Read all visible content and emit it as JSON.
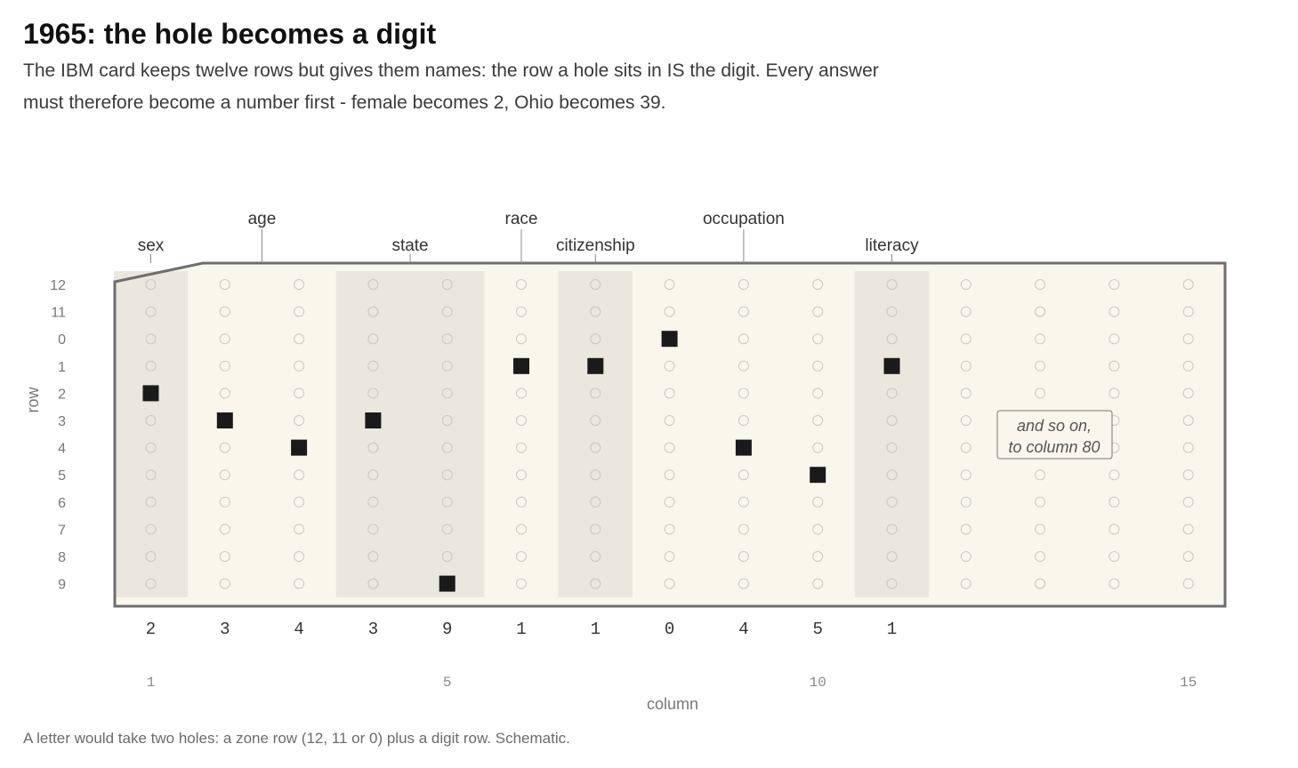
{
  "title": "1965: the hole becomes a digit",
  "subtitle": "The IBM card keeps twelve rows but gives them names: the row a hole sits in IS the digit. Every answer must therefore become a number first - female becomes 2, Ohio becomes 39.",
  "footnote": "A letter would take two holes: a zone row (12, 11 or 0) plus a digit row. Schematic.",
  "axes": {
    "ylabel": "row",
    "xlabel": "column",
    "row_labels": [
      "12",
      "11",
      "0",
      "1",
      "2",
      "3",
      "4",
      "5",
      "6",
      "7",
      "8",
      "9"
    ],
    "column_ticks": [
      "1",
      "5",
      "10",
      "15"
    ]
  },
  "fields": [
    {
      "name": "sex",
      "start": 1,
      "end": 1
    },
    {
      "name": "age",
      "start": 2,
      "end": 3
    },
    {
      "name": "state",
      "start": 4,
      "end": 5
    },
    {
      "name": "race",
      "start": 6,
      "end": 6
    },
    {
      "name": "citizenship",
      "start": 7,
      "end": 7
    },
    {
      "name": "occupation",
      "start": 8,
      "end": 10
    },
    {
      "name": "literacy",
      "start": 11,
      "end": 11
    }
  ],
  "note": {
    "line1": "and so on,",
    "line2": "to column 80"
  },
  "colors": {
    "card_fill": "#faf6ec",
    "shaded_field": "#ebe6de",
    "card_border": "#6e6e6e",
    "punch": "#1a1a1a",
    "empty_hole": "#c8c8c8"
  },
  "chart_data": {
    "type": "punch-card",
    "columns": 15,
    "rows": [
      "12",
      "11",
      "0",
      "1",
      "2",
      "3",
      "4",
      "5",
      "6",
      "7",
      "8",
      "9"
    ],
    "punches": [
      {
        "column": 1,
        "row": "2"
      },
      {
        "column": 2,
        "row": "3"
      },
      {
        "column": 3,
        "row": "4"
      },
      {
        "column": 4,
        "row": "3"
      },
      {
        "column": 5,
        "row": "9"
      },
      {
        "column": 6,
        "row": "1"
      },
      {
        "column": 7,
        "row": "1"
      },
      {
        "column": 8,
        "row": "0"
      },
      {
        "column": 9,
        "row": "4"
      },
      {
        "column": 10,
        "row": "5"
      },
      {
        "column": 11,
        "row": "1"
      }
    ],
    "digits_read": [
      "2",
      "3",
      "4",
      "3",
      "9",
      "1",
      "1",
      "0",
      "4",
      "5",
      "1"
    ]
  }
}
